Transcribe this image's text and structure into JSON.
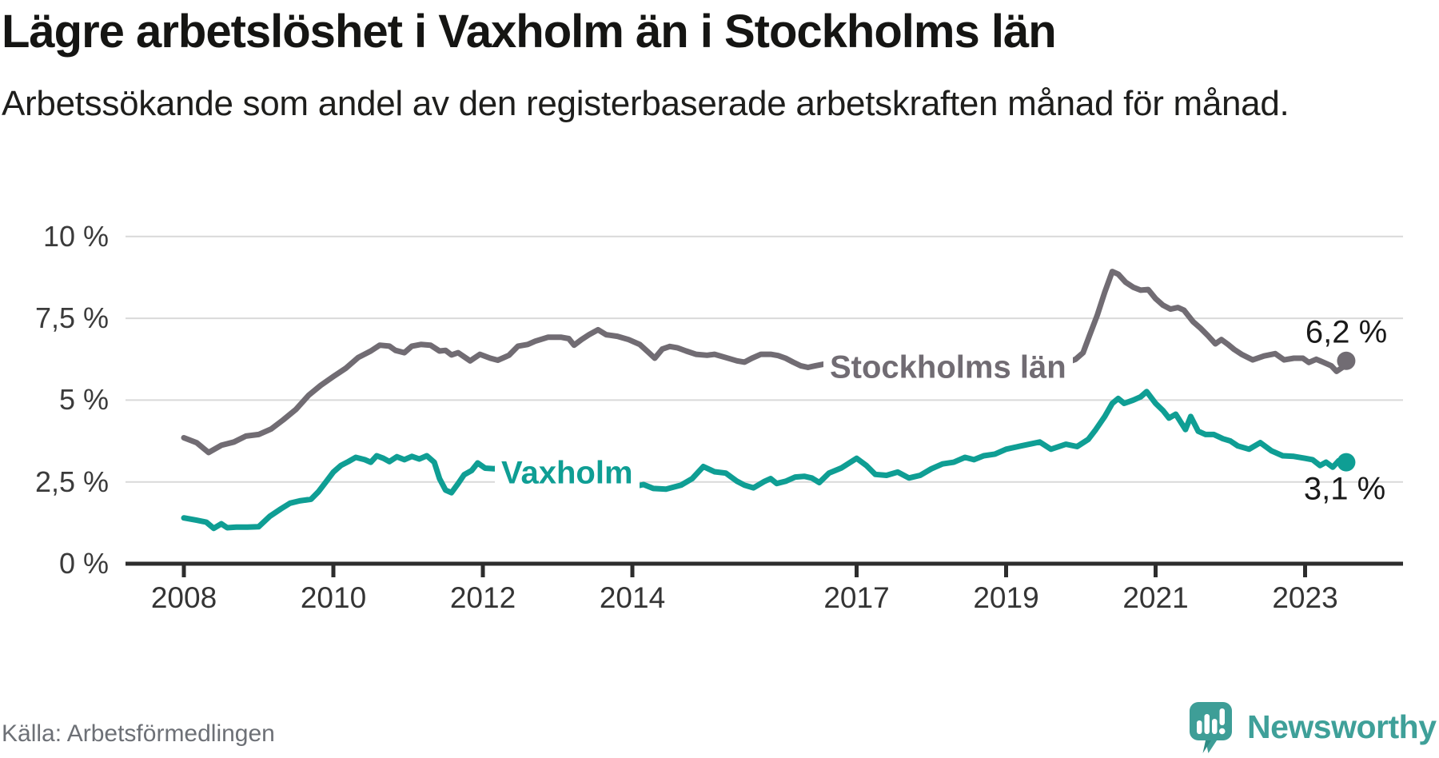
{
  "title": "Lägre arbetslöshet i Vaxholm än i Stockholms län",
  "subtitle": "Arbetssökande som andel av den registerbaserade arbetskraften månad för månad.",
  "source": "Källa: Arbetsförmedlingen",
  "branding": {
    "name": "Newsworthy",
    "logo_icon": "speech-bubble-bar-chart-icon",
    "color": "#3fa099"
  },
  "chart_data": {
    "type": "line",
    "title": "Lägre arbetslöshet i Vaxholm än i Stockholms län",
    "subtitle": "Arbetssökande som andel av den registerbaserade arbetskraften månad för månad.",
    "unit": "%",
    "ylim": [
      0,
      10
    ],
    "xlim": [
      2007.2,
      2024.3
    ],
    "grid": "horizontal",
    "legend_position": "inline-labels-on-line",
    "colors": {
      "axis": "#2d2d2d",
      "gridline": "#d9d9d9",
      "value_label_text": "#191919"
    },
    "y_ticks": [
      {
        "label": "0 %",
        "value": 0
      },
      {
        "label": "2,5 %",
        "value": 2.5
      },
      {
        "label": "5 %",
        "value": 5
      },
      {
        "label": "7,5 %",
        "value": 7.5
      },
      {
        "label": "10 %",
        "value": 10
      }
    ],
    "x_ticks": [
      {
        "label": "2008",
        "year": 2008
      },
      {
        "label": "2010",
        "year": 2010
      },
      {
        "label": "2012",
        "year": 2012
      },
      {
        "label": "2014",
        "year": 2014
      },
      {
        "label": "2017",
        "year": 2017
      },
      {
        "label": "2019",
        "year": 2019
      },
      {
        "label": "2021",
        "year": 2021
      },
      {
        "label": "2023",
        "year": 2023
      }
    ],
    "series": [
      {
        "name": "Stockholms län",
        "color": "#716c73",
        "end_label": "6,2 %",
        "end_value": 6.2,
        "points": [
          [
            2008.0,
            3.85
          ],
          [
            2008.17,
            3.7
          ],
          [
            2008.33,
            3.4
          ],
          [
            2008.5,
            3.62
          ],
          [
            2008.67,
            3.72
          ],
          [
            2008.83,
            3.9
          ],
          [
            2009.0,
            3.95
          ],
          [
            2009.17,
            4.12
          ],
          [
            2009.33,
            4.4
          ],
          [
            2009.5,
            4.72
          ],
          [
            2009.67,
            5.15
          ],
          [
            2009.83,
            5.45
          ],
          [
            2010.0,
            5.72
          ],
          [
            2010.17,
            5.98
          ],
          [
            2010.33,
            6.3
          ],
          [
            2010.5,
            6.5
          ],
          [
            2010.62,
            6.68
          ],
          [
            2010.75,
            6.65
          ],
          [
            2010.83,
            6.52
          ],
          [
            2010.95,
            6.45
          ],
          [
            2011.05,
            6.65
          ],
          [
            2011.17,
            6.7
          ],
          [
            2011.3,
            6.68
          ],
          [
            2011.42,
            6.5
          ],
          [
            2011.5,
            6.52
          ],
          [
            2011.58,
            6.38
          ],
          [
            2011.67,
            6.45
          ],
          [
            2011.83,
            6.2
          ],
          [
            2011.96,
            6.4
          ],
          [
            2012.1,
            6.28
          ],
          [
            2012.2,
            6.22
          ],
          [
            2012.35,
            6.37
          ],
          [
            2012.47,
            6.65
          ],
          [
            2012.6,
            6.7
          ],
          [
            2012.7,
            6.8
          ],
          [
            2012.87,
            6.92
          ],
          [
            2013.05,
            6.92
          ],
          [
            2013.15,
            6.88
          ],
          [
            2013.22,
            6.68
          ],
          [
            2013.32,
            6.85
          ],
          [
            2013.42,
            7.0
          ],
          [
            2013.54,
            7.15
          ],
          [
            2013.65,
            7.0
          ],
          [
            2013.8,
            6.95
          ],
          [
            2013.95,
            6.85
          ],
          [
            2014.1,
            6.7
          ],
          [
            2014.22,
            6.45
          ],
          [
            2014.3,
            6.28
          ],
          [
            2014.4,
            6.56
          ],
          [
            2014.5,
            6.64
          ],
          [
            2014.6,
            6.6
          ],
          [
            2014.72,
            6.5
          ],
          [
            2014.85,
            6.4
          ],
          [
            2015.0,
            6.37
          ],
          [
            2015.1,
            6.4
          ],
          [
            2015.25,
            6.3
          ],
          [
            2015.4,
            6.2
          ],
          [
            2015.5,
            6.16
          ],
          [
            2015.6,
            6.28
          ],
          [
            2015.72,
            6.4
          ],
          [
            2015.85,
            6.4
          ],
          [
            2015.95,
            6.36
          ],
          [
            2016.05,
            6.28
          ],
          [
            2016.15,
            6.16
          ],
          [
            2016.25,
            6.05
          ],
          [
            2016.35,
            6.0
          ],
          [
            2016.45,
            6.05
          ],
          [
            2016.56,
            6.1
          ],
          [
            2016.8,
            6.02
          ],
          [
            2017.2,
            5.92
          ],
          [
            2017.6,
            5.85
          ],
          [
            2018.0,
            5.82
          ],
          [
            2018.5,
            5.85
          ],
          [
            2019.0,
            5.9
          ],
          [
            2019.4,
            5.98
          ],
          [
            2019.7,
            6.05
          ],
          [
            2019.93,
            6.25
          ],
          [
            2020.03,
            6.45
          ],
          [
            2020.12,
            7.0
          ],
          [
            2020.22,
            7.6
          ],
          [
            2020.32,
            8.3
          ],
          [
            2020.42,
            8.93
          ],
          [
            2020.5,
            8.85
          ],
          [
            2020.6,
            8.6
          ],
          [
            2020.7,
            8.45
          ],
          [
            2020.8,
            8.36
          ],
          [
            2020.9,
            8.38
          ],
          [
            2021.0,
            8.1
          ],
          [
            2021.1,
            7.9
          ],
          [
            2021.2,
            7.78
          ],
          [
            2021.3,
            7.83
          ],
          [
            2021.38,
            7.75
          ],
          [
            2021.5,
            7.4
          ],
          [
            2021.6,
            7.2
          ],
          [
            2021.7,
            6.97
          ],
          [
            2021.8,
            6.72
          ],
          [
            2021.88,
            6.85
          ],
          [
            2021.97,
            6.7
          ],
          [
            2022.05,
            6.55
          ],
          [
            2022.15,
            6.4
          ],
          [
            2022.3,
            6.23
          ],
          [
            2022.45,
            6.35
          ],
          [
            2022.6,
            6.42
          ],
          [
            2022.72,
            6.23
          ],
          [
            2022.85,
            6.28
          ],
          [
            2022.97,
            6.28
          ],
          [
            2023.05,
            6.15
          ],
          [
            2023.15,
            6.25
          ],
          [
            2023.25,
            6.15
          ],
          [
            2023.35,
            6.05
          ],
          [
            2023.42,
            5.88
          ],
          [
            2023.5,
            6.0
          ],
          [
            2023.55,
            6.2
          ]
        ]
      },
      {
        "name": "Vaxholm",
        "color": "#0f9e94",
        "end_label": "3,1 %",
        "end_value": 3.1,
        "points": [
          [
            2008.0,
            1.4
          ],
          [
            2008.17,
            1.33
          ],
          [
            2008.3,
            1.27
          ],
          [
            2008.4,
            1.08
          ],
          [
            2008.5,
            1.22
          ],
          [
            2008.58,
            1.1
          ],
          [
            2008.7,
            1.12
          ],
          [
            2008.85,
            1.12
          ],
          [
            2009.0,
            1.13
          ],
          [
            2009.15,
            1.45
          ],
          [
            2009.3,
            1.68
          ],
          [
            2009.42,
            1.85
          ],
          [
            2009.55,
            1.92
          ],
          [
            2009.7,
            1.97
          ],
          [
            2009.8,
            2.2
          ],
          [
            2009.9,
            2.5
          ],
          [
            2010.0,
            2.8
          ],
          [
            2010.1,
            3.0
          ],
          [
            2010.2,
            3.12
          ],
          [
            2010.3,
            3.25
          ],
          [
            2010.42,
            3.18
          ],
          [
            2010.5,
            3.1
          ],
          [
            2010.58,
            3.3
          ],
          [
            2010.67,
            3.22
          ],
          [
            2010.75,
            3.12
          ],
          [
            2010.85,
            3.27
          ],
          [
            2010.95,
            3.18
          ],
          [
            2011.05,
            3.28
          ],
          [
            2011.15,
            3.2
          ],
          [
            2011.25,
            3.3
          ],
          [
            2011.35,
            3.1
          ],
          [
            2011.42,
            2.6
          ],
          [
            2011.5,
            2.25
          ],
          [
            2011.58,
            2.17
          ],
          [
            2011.67,
            2.45
          ],
          [
            2011.75,
            2.72
          ],
          [
            2011.85,
            2.85
          ],
          [
            2011.93,
            3.08
          ],
          [
            2012.03,
            2.92
          ],
          [
            2012.15,
            2.9
          ],
          [
            2012.35,
            3.0
          ],
          [
            2012.55,
            3.1
          ],
          [
            2012.75,
            3.17
          ],
          [
            2012.9,
            3.22
          ],
          [
            2013.05,
            3.1
          ],
          [
            2013.25,
            2.92
          ],
          [
            2013.45,
            2.75
          ],
          [
            2013.65,
            2.6
          ],
          [
            2013.85,
            2.45
          ],
          [
            2014.05,
            2.37
          ],
          [
            2014.15,
            2.42
          ],
          [
            2014.28,
            2.3
          ],
          [
            2014.45,
            2.28
          ],
          [
            2014.65,
            2.4
          ],
          [
            2014.8,
            2.6
          ],
          [
            2014.95,
            2.97
          ],
          [
            2015.1,
            2.81
          ],
          [
            2015.25,
            2.77
          ],
          [
            2015.4,
            2.52
          ],
          [
            2015.5,
            2.4
          ],
          [
            2015.62,
            2.32
          ],
          [
            2015.77,
            2.52
          ],
          [
            2015.85,
            2.6
          ],
          [
            2015.93,
            2.45
          ],
          [
            2016.05,
            2.52
          ],
          [
            2016.18,
            2.65
          ],
          [
            2016.3,
            2.67
          ],
          [
            2016.4,
            2.62
          ],
          [
            2016.5,
            2.48
          ],
          [
            2016.63,
            2.77
          ],
          [
            2016.8,
            2.93
          ],
          [
            2017.0,
            3.22
          ],
          [
            2017.13,
            3.0
          ],
          [
            2017.25,
            2.73
          ],
          [
            2017.4,
            2.7
          ],
          [
            2017.55,
            2.8
          ],
          [
            2017.7,
            2.62
          ],
          [
            2017.85,
            2.7
          ],
          [
            2018.0,
            2.9
          ],
          [
            2018.15,
            3.05
          ],
          [
            2018.3,
            3.1
          ],
          [
            2018.45,
            3.25
          ],
          [
            2018.57,
            3.18
          ],
          [
            2018.7,
            3.3
          ],
          [
            2018.85,
            3.35
          ],
          [
            2019.0,
            3.5
          ],
          [
            2019.2,
            3.6
          ],
          [
            2019.45,
            3.72
          ],
          [
            2019.6,
            3.5
          ],
          [
            2019.8,
            3.65
          ],
          [
            2019.95,
            3.58
          ],
          [
            2020.1,
            3.8
          ],
          [
            2020.2,
            4.1
          ],
          [
            2020.32,
            4.5
          ],
          [
            2020.42,
            4.9
          ],
          [
            2020.5,
            5.05
          ],
          [
            2020.58,
            4.9
          ],
          [
            2020.7,
            5.0
          ],
          [
            2020.8,
            5.1
          ],
          [
            2020.88,
            5.26
          ],
          [
            2021.0,
            4.9
          ],
          [
            2021.1,
            4.68
          ],
          [
            2021.18,
            4.45
          ],
          [
            2021.27,
            4.57
          ],
          [
            2021.4,
            4.1
          ],
          [
            2021.47,
            4.5
          ],
          [
            2021.57,
            4.05
          ],
          [
            2021.67,
            3.95
          ],
          [
            2021.78,
            3.95
          ],
          [
            2021.9,
            3.82
          ],
          [
            2022.0,
            3.75
          ],
          [
            2022.1,
            3.6
          ],
          [
            2022.25,
            3.5
          ],
          [
            2022.4,
            3.7
          ],
          [
            2022.55,
            3.45
          ],
          [
            2022.7,
            3.3
          ],
          [
            2022.85,
            3.28
          ],
          [
            2023.0,
            3.22
          ],
          [
            2023.1,
            3.18
          ],
          [
            2023.2,
            3.0
          ],
          [
            2023.28,
            3.1
          ],
          [
            2023.37,
            2.95
          ],
          [
            2023.45,
            3.15
          ],
          [
            2023.55,
            3.1
          ]
        ]
      }
    ]
  }
}
